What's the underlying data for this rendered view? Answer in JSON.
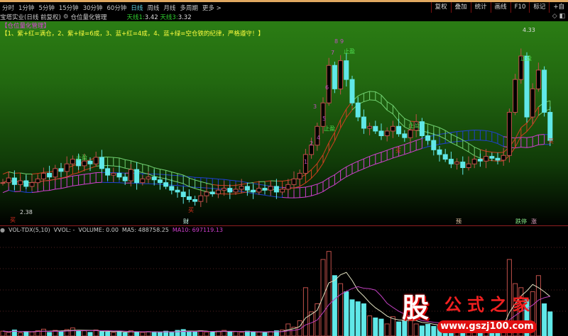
{
  "periods": [
    "分时",
    "1分钟",
    "5分钟",
    "15分钟",
    "30分钟",
    "60分钟",
    "日线",
    "周线",
    "月线",
    "多周期",
    "更多 >"
  ],
  "active_period": "日线",
  "tools": [
    "复权",
    "叠加",
    "统计",
    "画线",
    "F10",
    "标记",
    "+自"
  ],
  "title": {
    "stock": "宝塔实业(日线 前复权)",
    "indicator": "仓位量化管理",
    "line1_label": "天线1:",
    "line1_value": "3.42",
    "line3_label": "天线3:",
    "line3_value": "3.32"
  },
  "indicator_title": "【仓位量化管理】",
  "rule_text": "【1、紫+红=满仓，2、紫+绿=6成，3、蓝+红=4成，4、蓝+绿=空仓铁的纪律，严格遵守！】",
  "price_labels": {
    "high": "4.33",
    "low": "2.38"
  },
  "signals": {
    "take_profit": "止盈",
    "buy": "买",
    "numbers": [
      "1",
      "2",
      "3",
      "4",
      "5",
      "6",
      "7",
      "8",
      "9"
    ]
  },
  "event_markers": [
    "财",
    "预",
    "跌停",
    "涨"
  ],
  "volume_header": {
    "name": "VOL-TDX(5,10)",
    "vvol": "VVOL: -",
    "volume": "VOLUME: 0.00",
    "ma5": "MA5: 488758.25",
    "ma10": "MA10: 697119.13"
  },
  "colors": {
    "up": "#c0504a",
    "down": "#60e8e8",
    "band_green": "#70d070",
    "band_blue": "#2040d0",
    "band_magenta": "#d040d0",
    "band_red": "#d04020",
    "ma5": "#e0e0c0",
    "ma10": "#c040c0"
  },
  "watermark": {
    "char": "股",
    "name": "公式之家",
    "url": "www.gszj100.com"
  },
  "chart_data": {
    "type": "candlestick",
    "price_range": [
      2.38,
      4.33
    ],
    "closes": [
      2.7,
      2.75,
      2.68,
      2.72,
      2.66,
      2.7,
      2.74,
      2.8,
      2.76,
      2.85,
      2.82,
      2.9,
      2.95,
      2.88,
      2.93,
      2.9,
      2.97,
      2.85,
      2.78,
      2.8,
      2.76,
      2.72,
      2.84,
      2.7,
      2.74,
      2.76,
      2.73,
      2.7,
      2.66,
      2.62,
      2.6,
      2.55,
      2.52,
      2.5,
      2.56,
      2.6,
      2.58,
      2.62,
      2.64,
      2.6,
      2.63,
      2.66,
      2.62,
      2.6,
      2.64,
      2.62,
      2.66,
      2.6,
      2.63,
      2.68,
      2.74,
      2.8,
      3.0,
      3.1,
      3.3,
      3.55,
      3.95,
      3.7,
      4.0,
      3.8,
      3.55,
      3.4,
      3.28,
      3.3,
      3.25,
      3.2,
      3.25,
      3.3,
      3.22,
      3.18,
      3.26,
      3.35,
      3.2,
      3.15,
      3.05,
      3.0,
      2.95,
      2.9,
      2.92,
      2.86,
      2.9,
      2.95,
      2.93,
      2.98,
      2.96,
      2.94,
      2.99,
      3.45,
      3.8,
      4.05,
      3.4,
      3.7,
      3.9,
      3.45,
      3.15
    ],
    "volumes": [
      120,
      90,
      150,
      80,
      110,
      100,
      130,
      170,
      90,
      140,
      110,
      160,
      200,
      120,
      130,
      90,
      150,
      110,
      100,
      90,
      120,
      80,
      130,
      100,
      90,
      110,
      95,
      100,
      120,
      90,
      140,
      160,
      110,
      100,
      130,
      100,
      90,
      120,
      140,
      100,
      110,
      90,
      120,
      100,
      95,
      80,
      110,
      130,
      150,
      300,
      220,
      380,
      1200,
      600,
      800,
      1900,
      2100,
      1500,
      1300,
      1100,
      900,
      850,
      800,
      500,
      450,
      420,
      300,
      480,
      350,
      400,
      380,
      300,
      250,
      290,
      240,
      280,
      220,
      200,
      230,
      210,
      190,
      200,
      250,
      220,
      240,
      260,
      300,
      1900,
      1300,
      1200,
      900,
      1100,
      1500,
      800,
      600
    ]
  }
}
